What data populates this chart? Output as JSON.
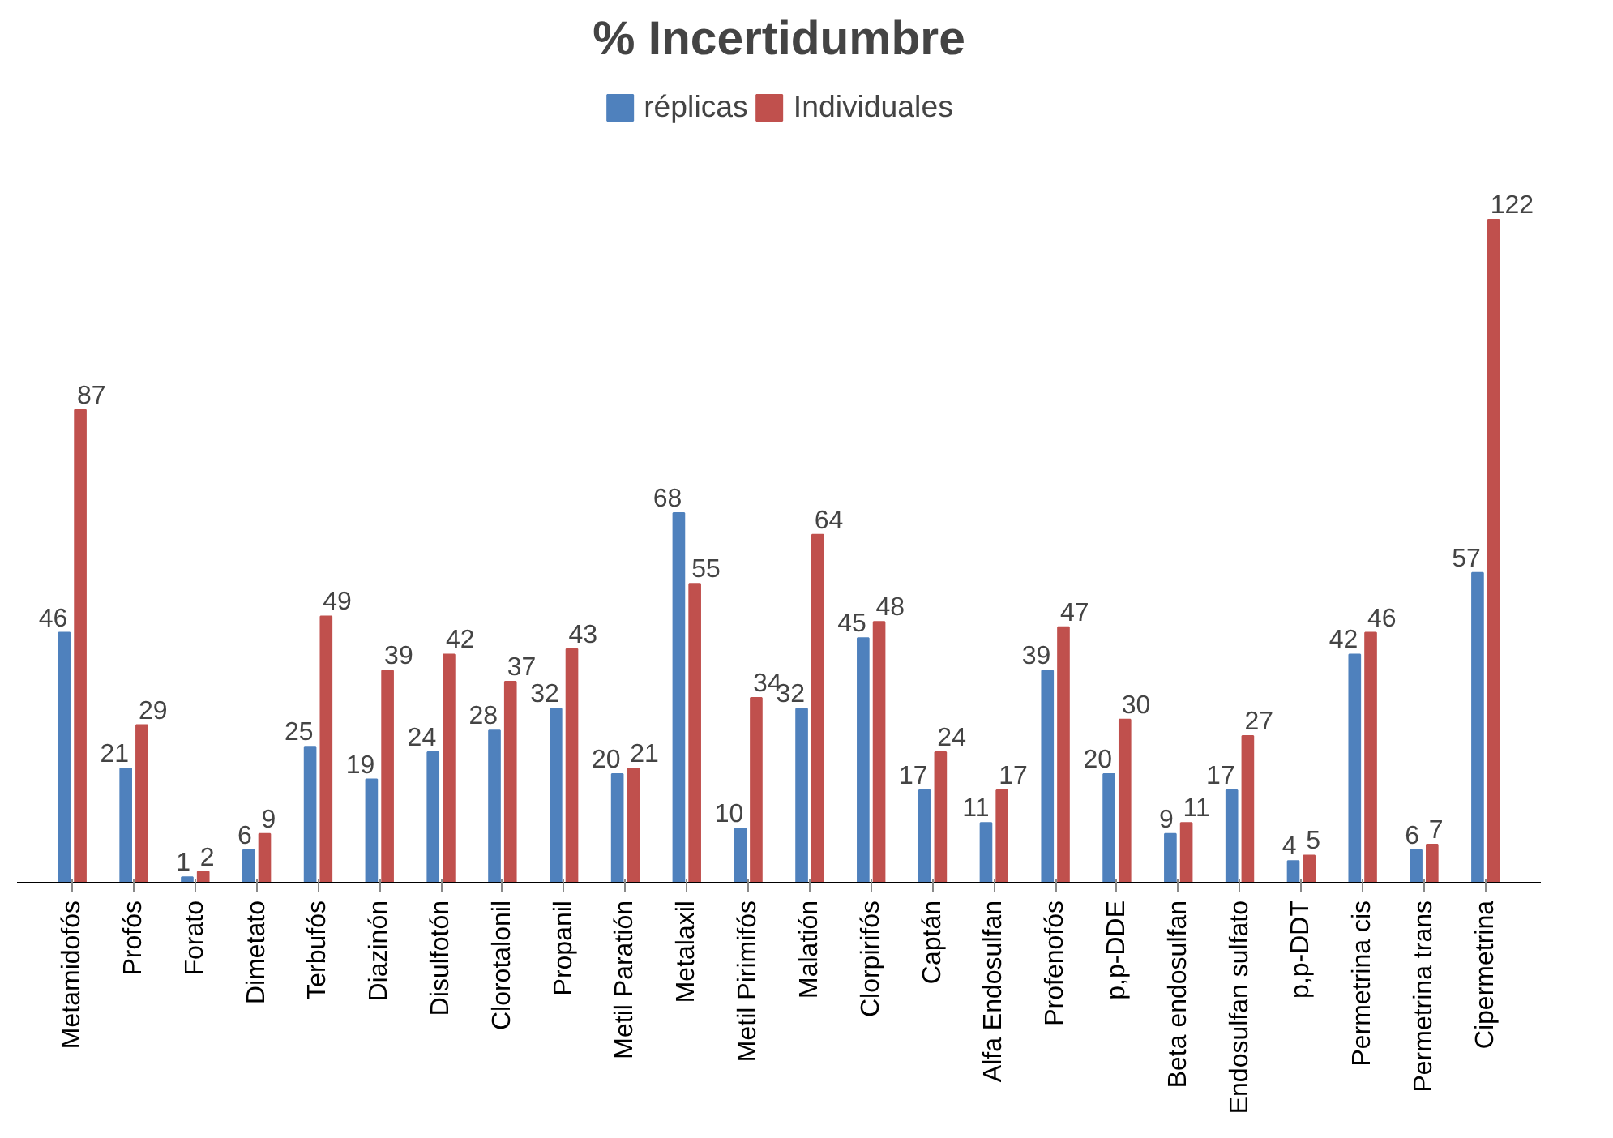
{
  "chart_data": {
    "type": "bar",
    "title": "% Incertidumbre",
    "categories": [
      "Metamidofós",
      "Profós",
      "Forato",
      "Dimetato",
      "Terbufós",
      "Diazinón",
      "Disulfotón",
      "Clorotalonil",
      "Propanil",
      "Metil Paratión",
      "Metalaxil",
      "Metil Pirimifós",
      "Malatión",
      "Clorpirifós",
      "Captán",
      "Alfa Endosulfan",
      "Profenofós",
      "p,p-DDE",
      "Beta endosulfan",
      "Endosulfan sulfato",
      "p,p-DDT",
      "Permetrina cis",
      "Permetrina trans",
      "Cipermetrina"
    ],
    "series": [
      {
        "name": "réplicas",
        "color": "#4f81bd",
        "values": [
          46,
          21,
          1,
          6,
          25,
          19,
          24,
          28,
          32,
          20,
          68,
          10,
          32,
          45,
          17,
          11,
          39,
          20,
          9,
          17,
          4,
          42,
          6,
          57
        ]
      },
      {
        "name": "Individuales",
        "color": "#c0504d",
        "values": [
          87,
          29,
          2,
          9,
          49,
          39,
          42,
          37,
          43,
          21,
          55,
          34,
          64,
          48,
          24,
          17,
          47,
          30,
          11,
          27,
          5,
          46,
          7,
          122
        ]
      }
    ],
    "data_labels": true,
    "legend": "top"
  }
}
